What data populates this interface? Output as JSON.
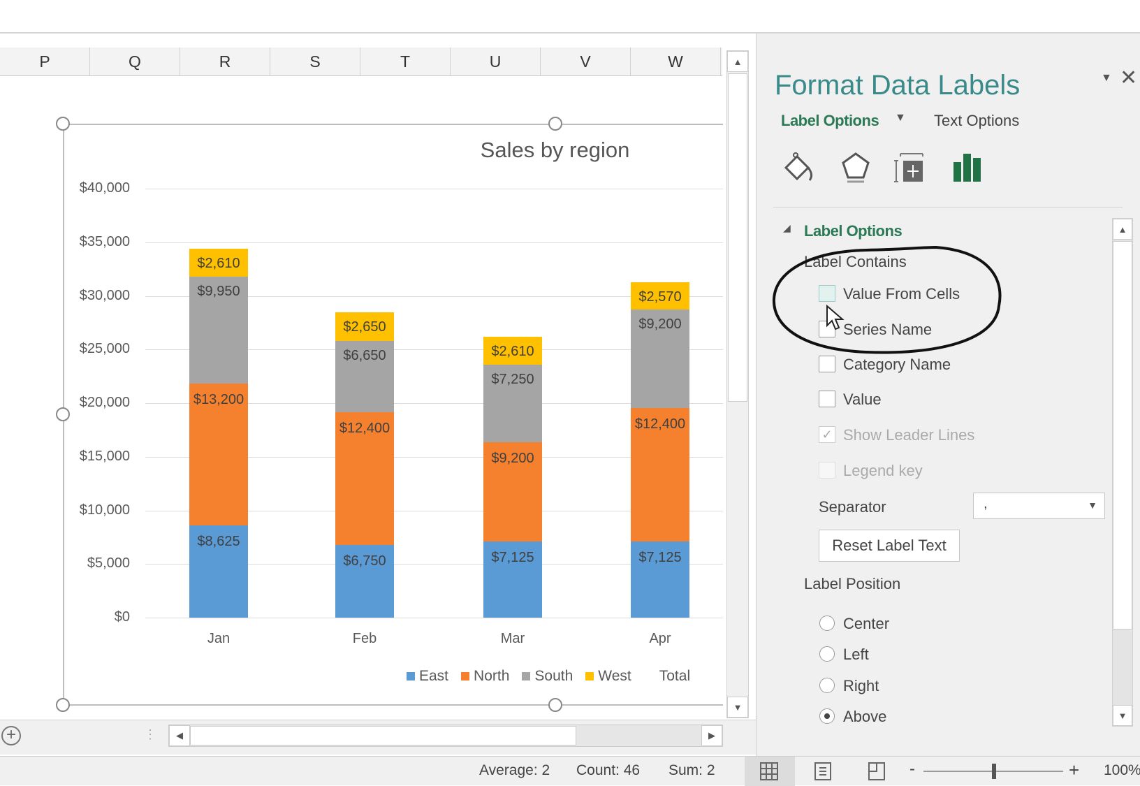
{
  "columns": [
    "P",
    "Q",
    "R",
    "S",
    "T",
    "U",
    "V",
    "W"
  ],
  "chart_data": {
    "type": "bar",
    "stacked": true,
    "title": "Sales by region",
    "categories": [
      "Jan",
      "Feb",
      "Mar",
      "Apr"
    ],
    "series": [
      {
        "name": "East",
        "color": "#5b9bd5",
        "values": [
          8625,
          6750,
          7125,
          7125
        ],
        "labels": [
          "$8,625",
          "$6,750",
          "$7,125",
          "$7,125"
        ]
      },
      {
        "name": "North",
        "color": "#f5812e",
        "values": [
          13200,
          12400,
          9200,
          12400
        ],
        "labels": [
          "$13,200",
          "$12,400",
          "$9,200",
          "$12,400"
        ]
      },
      {
        "name": "South",
        "color": "#a5a5a5",
        "values": [
          9950,
          6650,
          7250,
          9200
        ],
        "labels": [
          "$9,950",
          "$6,650",
          "$7,250",
          "$9,200"
        ]
      },
      {
        "name": "West",
        "color": "#ffc000",
        "values": [
          2610,
          2650,
          2610,
          2570
        ],
        "labels": [
          "$2,610",
          "$2,650",
          "$2,610",
          "$2,570"
        ]
      }
    ],
    "legend_extra": "Total",
    "ylim": [
      0,
      40000
    ],
    "yticks": [
      "$0",
      "$5,000",
      "$10,000",
      "$15,000",
      "$20,000",
      "$25,000",
      "$30,000",
      "$35,000",
      "$40,000"
    ],
    "grid": true,
    "legend": "bottom"
  },
  "panel": {
    "title": "Format Data Labels",
    "tab_label_options": "Label Options",
    "tab_text_options": "Text Options",
    "section": "Label Options",
    "label_contains": "Label Contains",
    "checkboxes": [
      {
        "label": "Value From Cells",
        "checked": false
      },
      {
        "label": "Series Name",
        "checked": false
      },
      {
        "label": "Category Name",
        "checked": false
      },
      {
        "label": "Value",
        "checked": false
      },
      {
        "label": "Show Leader Lines",
        "checked": true,
        "disabled": true
      },
      {
        "label": "Legend key",
        "checked": false,
        "disabled": true
      }
    ],
    "separator_label": "Separator",
    "separator_value": ",",
    "reset_button": "Reset Label Text",
    "label_position": "Label Position",
    "radios": [
      {
        "label": "Center",
        "selected": false
      },
      {
        "label": "Left",
        "selected": false
      },
      {
        "label": "Right",
        "selected": false
      },
      {
        "label": "Above",
        "selected": true
      }
    ]
  },
  "status": {
    "average": "Average: 2",
    "count": "Count: 46",
    "sum": "Sum: 2",
    "zoom": "100%",
    "zoom_level": 100
  }
}
